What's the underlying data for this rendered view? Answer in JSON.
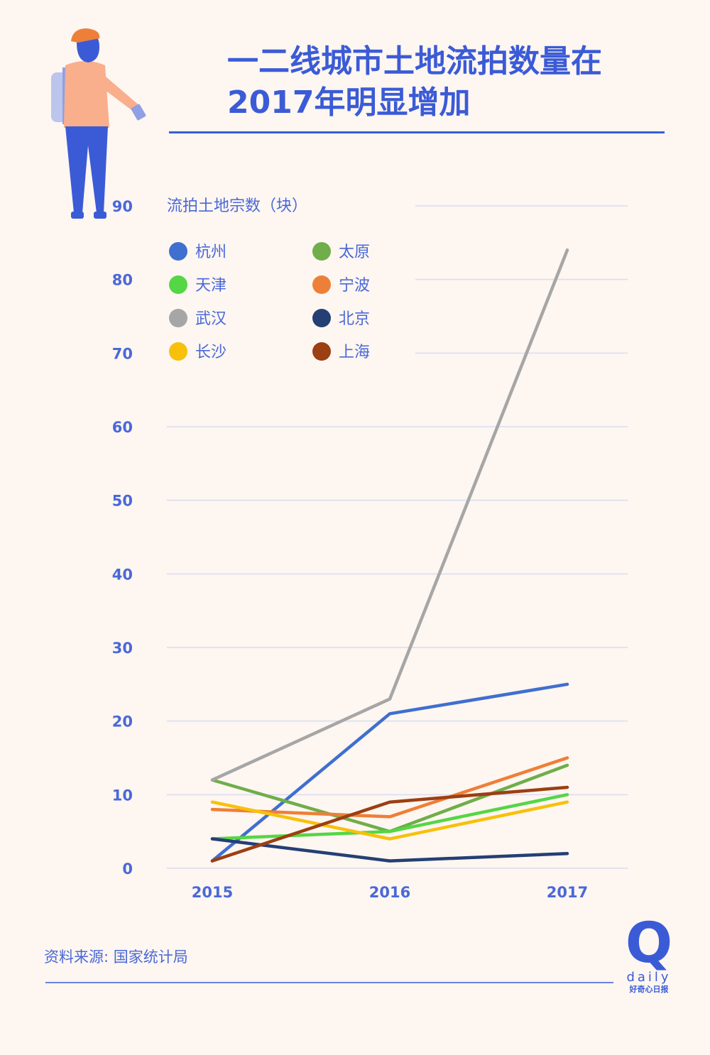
{
  "title_lines": [
    "一二线城市土地流拍数量在",
    "2017年明显增加"
  ],
  "source": "资料来源: 国家统计局",
  "logo": {
    "mark": "Q",
    "word": "daily",
    "tagline": "好奇心日报"
  },
  "colors": {
    "accent": "#3b5bd6",
    "background": "#fdf6f1",
    "grid": "#d9dcf0"
  },
  "chart_data": {
    "type": "line",
    "ylabel": "流拍土地宗数（块）",
    "x": [
      "2015",
      "2016",
      "2017"
    ],
    "y_ticks": [
      0,
      10,
      20,
      30,
      40,
      50,
      60,
      70,
      80,
      90
    ],
    "ylim": [
      0,
      90
    ],
    "grid": true,
    "legend_position": "top-left",
    "series": [
      {
        "name": "杭州",
        "color": "#3f6fcf",
        "values": [
          1,
          21,
          25
        ]
      },
      {
        "name": "太原",
        "color": "#6fae4a",
        "values": [
          12,
          5,
          14
        ]
      },
      {
        "name": "天津",
        "color": "#55d645",
        "values": [
          4,
          5,
          10
        ]
      },
      {
        "name": "宁波",
        "color": "#ee7f38",
        "values": [
          8,
          7,
          15
        ]
      },
      {
        "name": "武汉",
        "color": "#a6a6a6",
        "values": [
          12,
          23,
          84
        ]
      },
      {
        "name": "北京",
        "color": "#243f74",
        "values": [
          4,
          1,
          2
        ]
      },
      {
        "name": "长沙",
        "color": "#f7c10b",
        "values": [
          9,
          4,
          9
        ]
      },
      {
        "name": "上海",
        "color": "#9c3f12",
        "values": [
          1,
          9,
          11
        ]
      }
    ]
  }
}
